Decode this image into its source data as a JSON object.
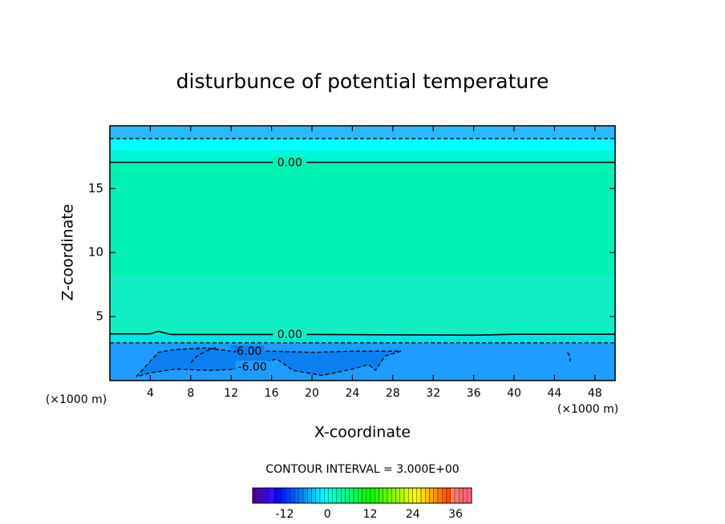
{
  "chart_data": {
    "type": "contour",
    "title": "disturbunce of potential temperature",
    "xlabel": "X-coordinate",
    "ylabel": "Z-coordinate",
    "axis_unit": "(×1000 m)",
    "note": "CONTOUR INTERVAL = 3.000E+00",
    "xlim": [
      0,
      50
    ],
    "ylim": [
      0,
      19.9
    ],
    "xticks": [
      4,
      8,
      12,
      16,
      20,
      24,
      28,
      32,
      36,
      40,
      44,
      48
    ],
    "yticks": [
      5,
      10,
      15
    ],
    "shading": [
      {
        "color": "#00f2b2",
        "ylim": [
          3.6,
          17.1
        ]
      },
      {
        "color": "#12eec4",
        "ylim": [
          3.6,
          8.3
        ]
      },
      {
        "color": "#00f4d8",
        "ylim": [
          17.1,
          18.0
        ]
      },
      {
        "color": "#00ffff",
        "ylim": [
          18.0,
          18.9
        ]
      },
      {
        "color": "#2cb8ff",
        "ylim": [
          18.9,
          19.9
        ]
      },
      {
        "color": "#00e6dc",
        "ylim": [
          2.95,
          3.6
        ]
      },
      {
        "color": "#1e9cff",
        "ylim": [
          0,
          2.95
        ]
      }
    ],
    "contours": [
      {
        "level": {
          "value": 0,
          "label": "0.00"
        },
        "style": "solid",
        "x": [
          0,
          50
        ],
        "y": [
          17.05,
          17.05
        ],
        "label_at": [
          17.8,
          17.05
        ]
      },
      {
        "level": {
          "value": 0,
          "label": "0.00"
        },
        "style": "solid",
        "x": [
          0,
          4,
          4.8,
          6,
          20,
          36,
          40,
          50
        ],
        "y": [
          3.65,
          3.65,
          3.85,
          3.6,
          3.6,
          3.55,
          3.62,
          3.62
        ],
        "label_at": [
          17.8,
          3.62
        ]
      },
      {
        "level": -3,
        "style": "dashed",
        "x": [
          0,
          50
        ],
        "y": [
          18.9,
          18.9
        ]
      },
      {
        "level": -3,
        "style": "dashed",
        "x": [
          0,
          50
        ],
        "y": [
          2.95,
          2.95
        ]
      },
      {
        "level": {
          "value": -6,
          "label": "-6.00"
        },
        "style": "dashed",
        "fill": "#0c80f0",
        "x": [
          2.6,
          4.8,
          6.2,
          9.5,
          12,
          16,
          20,
          24,
          28.8,
          27.2,
          26.3,
          25.6,
          24,
          21,
          18.1,
          16.5,
          13,
          9.8,
          6.5,
          4,
          2.6
        ],
        "y": [
          0.3,
          2.2,
          2.4,
          2.55,
          2.3,
          2.3,
          2.2,
          2.3,
          2.3,
          1.9,
          0.8,
          1.25,
          0.9,
          0.4,
          0.8,
          1.7,
          0.9,
          0.8,
          0.9,
          0.6,
          0.3
        ],
        "label_at": [
          13.6,
          2.3
        ]
      },
      {
        "level": {
          "value": -6,
          "label": "-6.00"
        },
        "style": "dashed",
        "x": [
          8,
          8.6,
          9.5,
          10.6
        ],
        "y": [
          1.4,
          1.9,
          2.3,
          2.6
        ],
        "label_at": [
          14.1,
          1.1
        ]
      },
      {
        "level": -6,
        "style": "dashed",
        "x": [
          45.3,
          45.6,
          45.5
        ],
        "y": [
          2.2,
          1.8,
          1.5
        ]
      }
    ],
    "colorbar": {
      "lim": [
        -21,
        40.5
      ],
      "ticks": [
        -12,
        0,
        12,
        24,
        36
      ]
    }
  }
}
